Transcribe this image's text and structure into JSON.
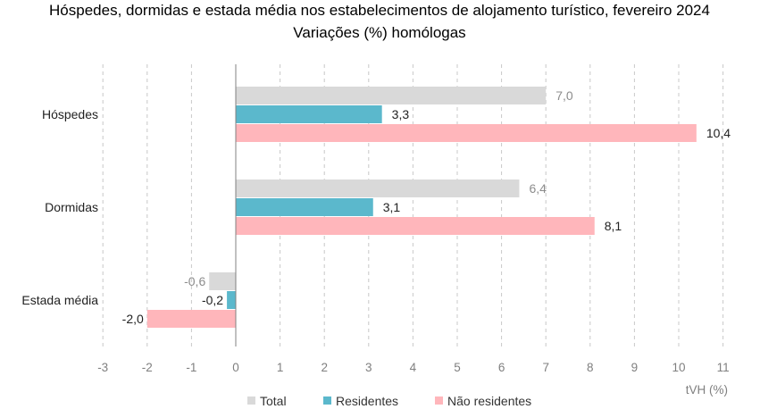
{
  "chart_data": {
    "type": "bar",
    "orientation": "horizontal",
    "title": "Hóspedes, dormidas e estada média nos estabelecimentos de alojamento turístico, fevereiro 2024",
    "subtitle": "Variações (%) homólogas",
    "categories": [
      "Hóspedes",
      "Dormidas",
      "Estada média"
    ],
    "series": [
      {
        "name": "Total",
        "color": "#d9d9d9",
        "label_color": "#8c8c8c",
        "values": [
          7.0,
          6.4,
          -0.6
        ],
        "labels": [
          "7,0",
          "6,4",
          "-0,6"
        ]
      },
      {
        "name": "Residentes",
        "color": "#5bb8cc",
        "label_color": "#222222",
        "values": [
          3.3,
          3.1,
          -0.2
        ],
        "labels": [
          "3,3",
          "3,1",
          "-0,2"
        ]
      },
      {
        "name": "Não residentes",
        "color": "#ffb6bb",
        "label_color": "#222222",
        "values": [
          10.4,
          8.1,
          -2.0
        ],
        "labels": [
          "10,4",
          "8,1",
          "-2,0"
        ]
      }
    ],
    "x_ticks": [
      -3,
      -2,
      -1,
      0,
      1,
      2,
      3,
      4,
      5,
      6,
      7,
      8,
      9,
      10,
      11
    ],
    "x_tick_labels": [
      "-3",
      "-2",
      "-1",
      "0",
      "1",
      "2",
      "3",
      "4",
      "5",
      "6",
      "7",
      "8",
      "9",
      "10",
      "11"
    ],
    "xlim": [
      -3,
      11
    ],
    "xlabel": "tVH (%)",
    "grid": "vertical dashed",
    "legend_position": "bottom"
  }
}
